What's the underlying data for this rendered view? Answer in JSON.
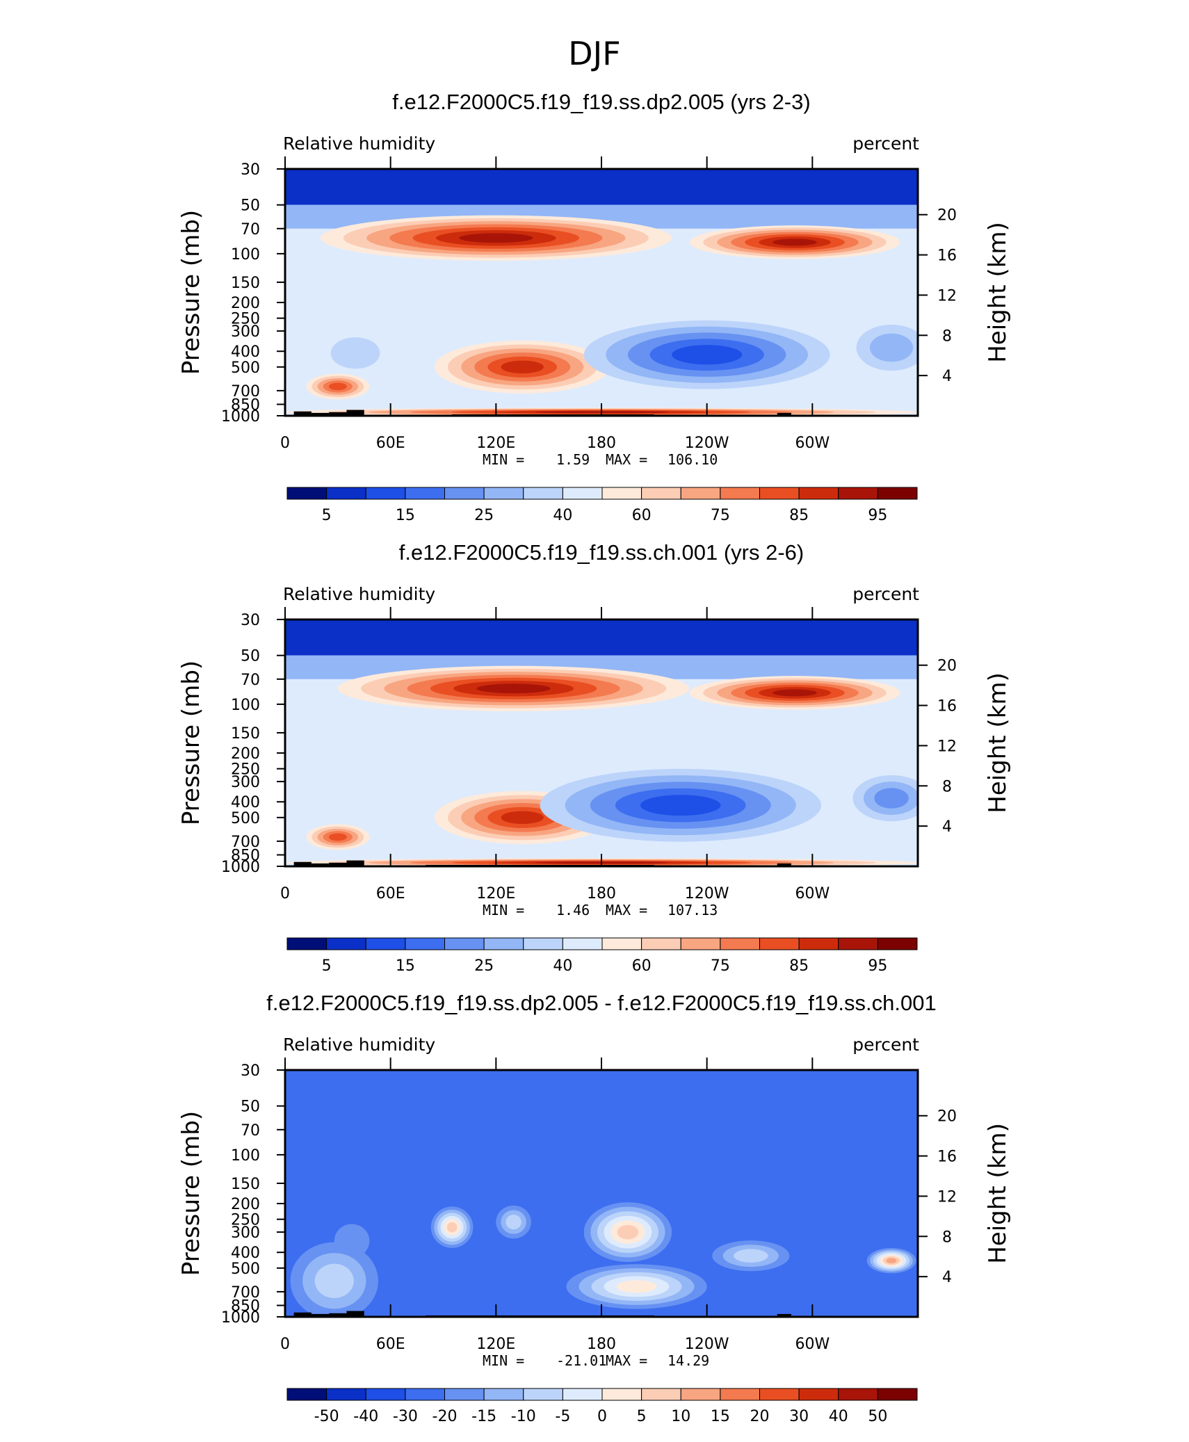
{
  "figure_title": "DJF",
  "colors": {
    "palette": [
      "#000e78",
      "#0a30c8",
      "#1e4fe6",
      "#3d6ef0",
      "#6792f2",
      "#93b6f6",
      "#bcd4fa",
      "#deebfd",
      "#fdeadb",
      "#fccdb5",
      "#f8a581",
      "#f47a50",
      "#e94f22",
      "#cd2c0c",
      "#a81508",
      "#7b0200"
    ],
    "topo": "#000000",
    "frame": "#000000"
  },
  "chart_data": [
    {
      "type": "contour",
      "title": "f.e12.F2000C5.f19_f19.ss.dp2.005 (yrs 2-3)",
      "variable": "Relative humidity",
      "units": "percent",
      "ylabel_left": "Pressure (mb)",
      "ylabel_right": "Height (km)",
      "pressure_ticks": [
        "30",
        "50",
        "70",
        "100",
        "150",
        "200",
        "250",
        "300",
        "400",
        "500",
        "700",
        "850",
        "1000"
      ],
      "pressure_values": [
        30,
        50,
        70,
        100,
        150,
        200,
        250,
        300,
        400,
        500,
        700,
        850,
        1000
      ],
      "height_ticks": [
        "20",
        "16",
        "12",
        "8",
        "4"
      ],
      "height_values": [
        20,
        16,
        12,
        8,
        4
      ],
      "lon_ticks": [
        "0",
        "60E",
        "120E",
        "180",
        "120W",
        "60W"
      ],
      "lon_values": [
        0,
        60,
        120,
        180,
        240,
        300
      ],
      "min_label": "MIN =",
      "min": "1.59",
      "max_label": "MAX =",
      "max": "106.10",
      "contour_levels": [
        5,
        10,
        15,
        20,
        25,
        30,
        40,
        50,
        60,
        70,
        75,
        80,
        85,
        90,
        95
      ],
      "colorbar_labels": [
        "5",
        "15",
        "25",
        "40",
        "60",
        "75",
        "85",
        "95"
      ],
      "base_level": 6,
      "features": [
        {
          "lon": 120,
          "p": 80,
          "value": 92,
          "dlon": 100,
          "dp": 25
        },
        {
          "lon": 290,
          "p": 85,
          "value": 90,
          "dlon": 60,
          "dp": 20
        },
        {
          "lon": 135,
          "p": 500,
          "value": 89,
          "dlon": 50,
          "dp": 180
        },
        {
          "lon": 240,
          "p": 420,
          "value": 12,
          "dlon": 70,
          "dp": 190
        },
        {
          "lon": 345,
          "p": 380,
          "value": 25,
          "dlon": 20,
          "dp": 120
        },
        {
          "lon": 40,
          "p": 410,
          "value": 35,
          "dlon": 14,
          "dp": 90
        },
        {
          "lon": 30,
          "p": 660,
          "value": 84,
          "dlon": 18,
          "dp": 120
        },
        {
          "lon": 180,
          "p": 950,
          "value": 90,
          "dlon": 180,
          "dp": 70
        }
      ],
      "topography": [
        [
          5,
          15,
          940
        ],
        [
          15,
          25,
          960
        ],
        [
          25,
          35,
          950
        ],
        [
          35,
          45,
          920
        ],
        [
          45,
          95,
          1000
        ],
        [
          95,
          210,
          980
        ],
        [
          210,
          280,
          1000
        ],
        [
          280,
          288,
          960
        ],
        [
          288,
          310,
          985
        ],
        [
          310,
          360,
          1000
        ]
      ]
    },
    {
      "type": "contour",
      "title": "f.e12.F2000C5.f19_f19.ss.ch.001 (yrs 2-6)",
      "variable": "Relative humidity",
      "units": "percent",
      "ylabel_left": "Pressure (mb)",
      "ylabel_right": "Height (km)",
      "pressure_ticks": [
        "30",
        "50",
        "70",
        "100",
        "150",
        "200",
        "250",
        "300",
        "400",
        "500",
        "700",
        "850",
        "1000"
      ],
      "pressure_values": [
        30,
        50,
        70,
        100,
        150,
        200,
        250,
        300,
        400,
        500,
        700,
        850,
        1000
      ],
      "height_ticks": [
        "20",
        "16",
        "12",
        "8",
        "4"
      ],
      "height_values": [
        20,
        16,
        12,
        8,
        4
      ],
      "lon_ticks": [
        "0",
        "60E",
        "120E",
        "180",
        "120W",
        "60W"
      ],
      "lon_values": [
        0,
        60,
        120,
        180,
        240,
        300
      ],
      "min_label": "MIN =",
      "min": "1.46",
      "max_label": "MAX =",
      "max": "107.13",
      "contour_levels": [
        5,
        10,
        15,
        20,
        25,
        30,
        40,
        50,
        60,
        70,
        75,
        80,
        85,
        90,
        95
      ],
      "colorbar_labels": [
        "5",
        "15",
        "25",
        "40",
        "60",
        "75",
        "85",
        "95"
      ],
      "base_level": 6,
      "features": [
        {
          "lon": 130,
          "p": 80,
          "value": 93,
          "dlon": 100,
          "dp": 25
        },
        {
          "lon": 290,
          "p": 85,
          "value": 90,
          "dlon": 60,
          "dp": 20
        },
        {
          "lon": 135,
          "p": 500,
          "value": 89,
          "dlon": 50,
          "dp": 180
        },
        {
          "lon": 225,
          "p": 420,
          "value": 14,
          "dlon": 80,
          "dp": 200
        },
        {
          "lon": 345,
          "p": 380,
          "value": 23,
          "dlon": 22,
          "dp": 120
        },
        {
          "lon": 30,
          "p": 660,
          "value": 82,
          "dlon": 18,
          "dp": 120
        },
        {
          "lon": 180,
          "p": 950,
          "value": 90,
          "dlon": 180,
          "dp": 70
        }
      ],
      "topography": [
        [
          5,
          15,
          940
        ],
        [
          15,
          25,
          960
        ],
        [
          25,
          35,
          950
        ],
        [
          35,
          45,
          920
        ],
        [
          45,
          80,
          1000
        ],
        [
          80,
          210,
          980
        ],
        [
          210,
          280,
          1000
        ],
        [
          280,
          288,
          960
        ],
        [
          288,
          310,
          985
        ],
        [
          310,
          360,
          1000
        ]
      ]
    },
    {
      "type": "contour",
      "title": "f.e12.F2000C5.f19_f19.ss.dp2.005 - f.e12.F2000C5.f19_f19.ss.ch.001",
      "variable": "Relative humidity",
      "units": "percent",
      "ylabel_left": "Pressure (mb)",
      "ylabel_right": "Height (km)",
      "pressure_ticks": [
        "30",
        "50",
        "70",
        "100",
        "150",
        "200",
        "250",
        "300",
        "400",
        "500",
        "700",
        "850",
        "1000"
      ],
      "pressure_values": [
        30,
        50,
        70,
        100,
        150,
        200,
        250,
        300,
        400,
        500,
        700,
        850,
        1000
      ],
      "height_ticks": [
        "20",
        "16",
        "12",
        "8",
        "4"
      ],
      "height_values": [
        20,
        16,
        12,
        8,
        4
      ],
      "lon_ticks": [
        "0",
        "60E",
        "120E",
        "180",
        "120W",
        "60W"
      ],
      "lon_values": [
        0,
        60,
        120,
        180,
        240,
        300
      ],
      "min_label": "MIN =",
      "min": "-21.01",
      "max_label": "MAX =",
      "max": "14.29",
      "contour_levels": [
        -50,
        -40,
        -30,
        -20,
        -15,
        -10,
        -5,
        0,
        5,
        10,
        15,
        20,
        30,
        40,
        50
      ],
      "colorbar_labels": [
        "-50",
        "-40",
        "-30",
        "-20",
        "-15",
        "-10",
        "-5",
        "0",
        "5",
        "10",
        "15",
        "20",
        "30",
        "40",
        "50"
      ],
      "base_level": 2,
      "features": [
        {
          "lon": 38,
          "p": 340,
          "value": -18,
          "dlon": 10,
          "dp": 80
        },
        {
          "lon": 28,
          "p": 600,
          "value": -6,
          "dlon": 25,
          "dp": 300
        },
        {
          "lon": 95,
          "p": 280,
          "value": 9,
          "dlon": 12,
          "dp": 80
        },
        {
          "lon": 130,
          "p": 260,
          "value": -6,
          "dlon": 10,
          "dp": 60
        },
        {
          "lon": 195,
          "p": 300,
          "value": 7,
          "dlon": 25,
          "dp": 120
        },
        {
          "lon": 265,
          "p": 420,
          "value": -10,
          "dlon": 22,
          "dp": 90
        },
        {
          "lon": 345,
          "p": 450,
          "value": 10,
          "dlon": 14,
          "dp": 80
        },
        {
          "lon": 200,
          "p": 650,
          "value": 4,
          "dlon": 40,
          "dp": 200
        }
      ],
      "topography": [
        [
          5,
          15,
          940
        ],
        [
          15,
          25,
          960
        ],
        [
          25,
          35,
          950
        ],
        [
          35,
          45,
          920
        ],
        [
          45,
          80,
          1000
        ],
        [
          80,
          210,
          980
        ],
        [
          210,
          280,
          1000
        ],
        [
          280,
          288,
          960
        ],
        [
          288,
          310,
          985
        ],
        [
          310,
          360,
          1000
        ]
      ]
    }
  ]
}
